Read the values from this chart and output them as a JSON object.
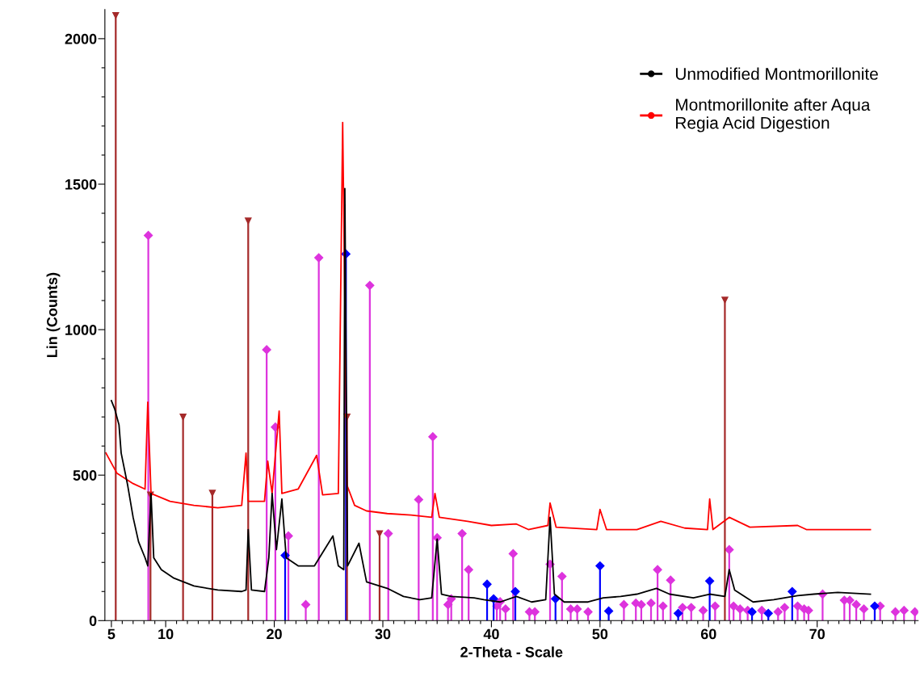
{
  "chart_data": {
    "type": "line",
    "xlabel": "2-Theta - Scale",
    "ylabel": "Lin (Counts)",
    "xlim": [
      4.4,
      79.3
    ],
    "ylim": [
      0,
      2100
    ],
    "xticks": [
      5,
      {
        "value": 6,
        "label": null
      },
      {
        "value": 7,
        "label": null
      },
      {
        "value": 8,
        "label": null
      },
      {
        "value": 9,
        "label": null
      },
      10,
      {
        "value": 11,
        "label": null
      },
      {
        "value": 12,
        "label": null
      },
      {
        "value": 13,
        "label": null
      },
      {
        "value": 14,
        "label": null
      },
      {
        "value": 15,
        "label": null
      },
      {
        "value": 16,
        "label": null
      },
      {
        "value": 17,
        "label": null
      },
      {
        "value": 18,
        "label": null
      },
      {
        "value": 19,
        "label": null
      },
      20,
      {
        "value": 21,
        "label": null
      },
      {
        "value": 22,
        "label": null
      },
      {
        "value": 23,
        "label": null
      },
      {
        "value": 24,
        "label": null
      },
      {
        "value": 25,
        "label": null
      },
      {
        "value": 26,
        "label": null
      },
      {
        "value": 27,
        "label": null
      },
      {
        "value": 28,
        "label": null
      },
      {
        "value": 29,
        "label": null
      },
      30,
      {
        "value": 31,
        "label": null
      },
      {
        "value": 32,
        "label": null
      },
      {
        "value": 33,
        "label": null
      },
      {
        "value": 34,
        "label": null
      },
      {
        "value": 35,
        "label": null
      },
      {
        "value": 36,
        "label": null
      },
      {
        "value": 37,
        "label": null
      },
      {
        "value": 38,
        "label": null
      },
      {
        "value": 39,
        "label": null
      },
      40,
      {
        "value": 41,
        "label": null
      },
      {
        "value": 42,
        "label": null
      },
      {
        "value": 43,
        "label": null
      },
      {
        "value": 44,
        "label": null
      },
      {
        "value": 45,
        "label": null
      },
      {
        "value": 46,
        "label": null
      },
      {
        "value": 47,
        "label": null
      },
      {
        "value": 48,
        "label": null
      },
      {
        "value": 49,
        "label": null
      },
      50,
      {
        "value": 51,
        "label": null
      },
      {
        "value": 52,
        "label": null
      },
      {
        "value": 53,
        "label": null
      },
      {
        "value": 54,
        "label": null
      },
      {
        "value": 55,
        "label": null
      },
      {
        "value": 56,
        "label": null
      },
      {
        "value": 57,
        "label": null
      },
      {
        "value": 58,
        "label": null
      },
      {
        "value": 59,
        "label": null
      },
      60,
      {
        "value": 61,
        "label": null
      },
      {
        "value": 62,
        "label": null
      },
      {
        "value": 63,
        "label": null
      },
      {
        "value": 64,
        "label": null
      },
      {
        "value": 65,
        "label": null
      },
      {
        "value": 66,
        "label": null
      },
      {
        "value": 67,
        "label": null
      },
      {
        "value": 68,
        "label": null
      },
      {
        "value": 69,
        "label": null
      },
      70,
      {
        "value": 71,
        "label": null
      },
      {
        "value": 72,
        "label": null
      },
      {
        "value": 73,
        "label": null
      },
      {
        "value": 74,
        "label": null
      },
      {
        "value": 75,
        "label": null
      },
      {
        "value": 76,
        "label": null
      },
      {
        "value": 77,
        "label": null
      },
      {
        "value": 78,
        "label": null
      },
      {
        "value": 79,
        "label": null
      }
    ],
    "yticks": [
      0,
      {
        "value": 100,
        "label": null
      },
      {
        "value": 200,
        "label": null
      },
      {
        "value": 300,
        "label": null
      },
      {
        "value": 400,
        "label": null
      },
      500,
      {
        "value": 600,
        "label": null
      },
      {
        "value": 700,
        "label": null
      },
      {
        "value": 800,
        "label": null
      },
      {
        "value": 900,
        "label": null
      },
      1000,
      {
        "value": 1100,
        "label": null
      },
      {
        "value": 1200,
        "label": null
      },
      {
        "value": 1300,
        "label": null
      },
      {
        "value": 1400,
        "label": null
      },
      1500,
      {
        "value": 1600,
        "label": null
      },
      {
        "value": 1700,
        "label": null
      },
      {
        "value": 1800,
        "label": null
      },
      {
        "value": 1900,
        "label": null
      },
      2000
    ],
    "legend": "top right",
    "grid": false,
    "series": [
      {
        "type": "lollipop",
        "color": "#dd33dd",
        "marker": "diamond",
        "x": [
          8.4,
          19.3,
          20.1,
          21.3,
          22.9,
          24.1,
          28.8,
          30.5,
          33.3,
          34.6,
          35.0,
          36.0,
          36.3,
          37.3,
          37.9,
          40.5,
          40.8,
          41.3,
          42.0,
          43.5,
          44.0,
          45.4,
          46.5,
          47.3,
          47.9,
          48.9,
          52.2,
          53.3,
          53.8,
          54.7,
          55.3,
          55.8,
          56.5,
          57.6,
          58.4,
          59.5,
          60.6,
          61.9,
          62.3,
          62.9,
          63.6,
          64.9,
          66.4,
          67.0,
          68.2,
          68.8,
          69.2,
          70.5,
          72.5,
          73.0,
          73.6,
          74.3,
          75.8,
          77.2,
          78.0,
          79.0
        ],
        "values": [
          1324,
          931,
          665,
          291,
          55,
          1247,
          1152,
          299,
          416,
          632,
          285,
          55,
          75,
          299,
          175,
          50,
          65,
          40,
          230,
          30,
          30,
          194,
          152,
          40,
          40,
          30,
          55,
          60,
          55,
          60,
          175,
          50,
          139,
          45,
          45,
          35,
          50,
          244,
          50,
          40,
          35,
          35,
          30,
          45,
          50,
          40,
          35,
          91,
          70,
          70,
          55,
          40,
          50,
          30,
          35,
          30
        ]
      },
      {
        "type": "lollipop",
        "color": "#0000ff",
        "marker": "diamond",
        "x": [
          21.0,
          26.6,
          39.6,
          40.2,
          42.2,
          45.9,
          50.0,
          50.8,
          57.2,
          60.1,
          64.0,
          65.5,
          67.7,
          75.3
        ],
        "values": [
          224,
          1260,
          125,
          75,
          100,
          75,
          188,
          33,
          25,
          136,
          30,
          25,
          100,
          50
        ]
      },
      {
        "type": "lollipop",
        "color": "#a52a2a",
        "marker": "triangle",
        "x": [
          5.4,
          8.6,
          11.6,
          14.3,
          17.6,
          26.7,
          29.7,
          61.5
        ],
        "values": [
          2080,
          432,
          700,
          438,
          1374,
          700,
          299,
          1102
        ]
      },
      {
        "name": "Montmorillonite after Aqua\nRegia Acid Digestion",
        "color": "#ff0000",
        "x": [
          4.5,
          5.5,
          7.0,
          8.1,
          8.35,
          8.65,
          10.4,
          12.6,
          14.8,
          17.0,
          17.4,
          17.6,
          19.1,
          19.4,
          19.8,
          20.45,
          20.7,
          22.2,
          23.9,
          24.45,
          25.9,
          26.3,
          26.7,
          27.4,
          28.5,
          30.4,
          32.6,
          34.5,
          34.8,
          35.2,
          37.8,
          40.0,
          42.3,
          43.4,
          45.2,
          45.4,
          45.96,
          49.7,
          50.0,
          50.6,
          53.4,
          55.6,
          57.8,
          59.9,
          60.1,
          60.4,
          61.9,
          63.8,
          68.2,
          69.0,
          71.9,
          74.9
        ],
        "values": [
          576,
          507,
          471,
          452,
          751,
          437,
          410,
          396,
          388,
          396,
          576,
          410,
          410,
          548,
          437,
          720,
          437,
          452,
          568,
          432,
          437,
          1712,
          465,
          396,
          377,
          368,
          363,
          355,
          437,
          355,
          341,
          327,
          332,
          313,
          327,
          404,
          321,
          313,
          382,
          313,
          313,
          341,
          318,
          313,
          418,
          313,
          355,
          321,
          327,
          313,
          313,
          313
        ]
      },
      {
        "name": "Unmodified Montmorillonite",
        "color": "#000000",
        "x": [
          5.0,
          5.3,
          5.7,
          5.9,
          6.5,
          7.0,
          7.5,
          8.1,
          8.35,
          8.65,
          8.9,
          9.6,
          10.7,
          12.6,
          14.8,
          17.0,
          17.4,
          17.6,
          17.9,
          19.1,
          19.5,
          19.8,
          20.2,
          20.7,
          21.1,
          22.2,
          23.7,
          25.4,
          25.9,
          26.4,
          26.5,
          26.75,
          27.8,
          28.5,
          30.4,
          31.9,
          33.4,
          34.5,
          35.0,
          35.4,
          36.3,
          38.4,
          39.3,
          40.8,
          42.3,
          43.7,
          45.0,
          45.4,
          45.8,
          46.7,
          48.9,
          50.3,
          51.9,
          53.4,
          55.2,
          56.4,
          58.6,
          60.1,
          61.5,
          61.9,
          62.4,
          64.1,
          66.0,
          68.2,
          69.7,
          71.9,
          74.9
        ],
        "values": [
          756,
          728,
          673,
          576,
          465,
          355,
          271,
          216,
          188,
          437,
          216,
          175,
          147,
          119,
          105,
          100,
          105,
          313,
          105,
          100,
          216,
          437,
          244,
          418,
          216,
          188,
          188,
          291,
          188,
          175,
          1485,
          188,
          266,
          133,
          111,
          83,
          72,
          78,
          280,
          91,
          83,
          78,
          72,
          64,
          83,
          64,
          72,
          355,
          91,
          64,
          64,
          78,
          83,
          91,
          111,
          91,
          78,
          91,
          83,
          175,
          105,
          64,
          72,
          86,
          91,
          97,
          91
        ]
      }
    ]
  }
}
